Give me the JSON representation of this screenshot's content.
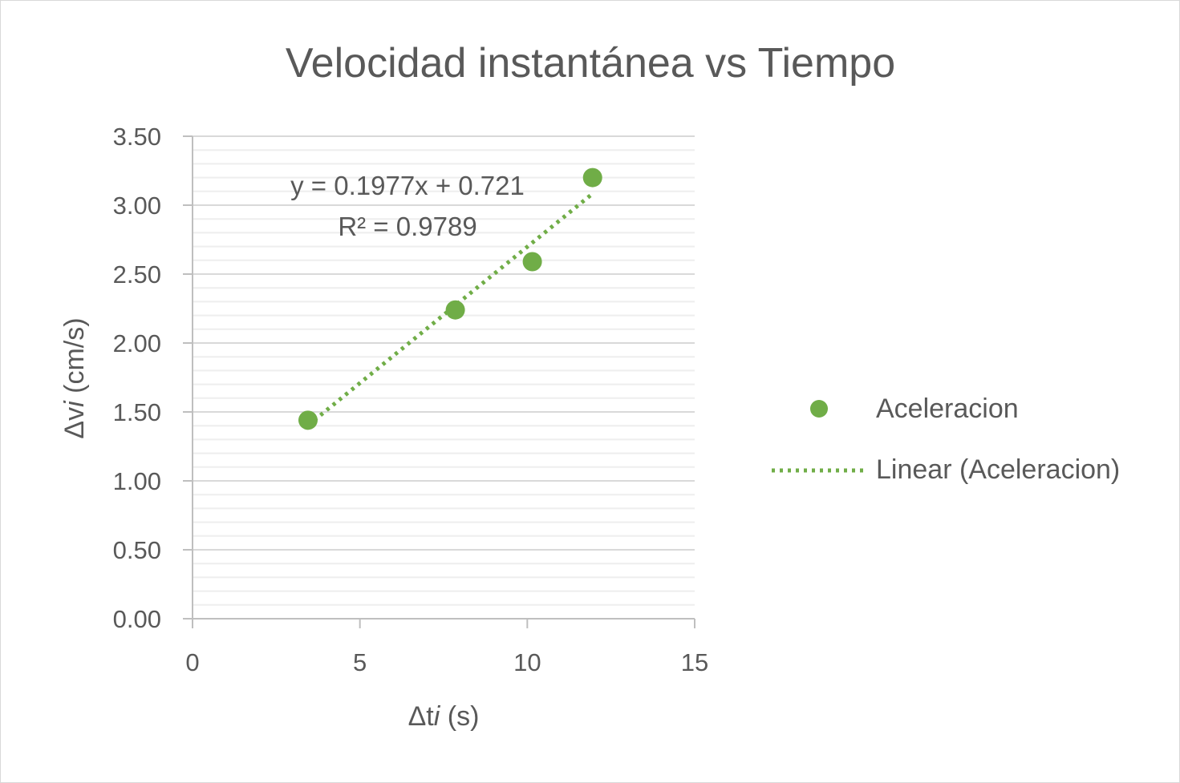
{
  "chart_data": {
    "type": "scatter",
    "title": "Velocidad instantánea vs Tiempo",
    "xlabel_main": "Δt",
    "xlabel_var": "i",
    "xlabel_unit": " (s)",
    "ylabel_main": "Δv",
    "ylabel_var": "i",
    "ylabel_unit": " (cm/s)",
    "xlim": [
      0,
      15
    ],
    "ylim": [
      0,
      3.5
    ],
    "x_ticks": [
      0,
      5,
      10,
      15
    ],
    "x_tick_labels": [
      "0",
      "5",
      "10",
      "15"
    ],
    "y_ticks": [
      0,
      0.5,
      1.0,
      1.5,
      2.0,
      2.5,
      3.0,
      3.5
    ],
    "y_tick_labels": [
      "0.00",
      "0.50",
      "1.00",
      "1.50",
      "2.00",
      "2.50",
      "3.00",
      "3.50"
    ],
    "y_minor_step": 0.1,
    "grid": true,
    "legend_position": "right",
    "series": [
      {
        "name": "Aceleracion",
        "color": "#70ad47",
        "x": [
          3.45,
          7.85,
          10.15,
          11.95
        ],
        "y": [
          1.44,
          2.24,
          2.59,
          3.2
        ]
      }
    ],
    "trendline": {
      "name": "Linear (Aceleracion)",
      "type": "linear",
      "slope": 0.1977,
      "intercept": 0.721,
      "x_range": [
        3.45,
        11.95
      ],
      "color": "#70ad47",
      "equation_label": "y = 0.1977x + 0.721",
      "r2_label": "R² = 0.9789"
    }
  }
}
